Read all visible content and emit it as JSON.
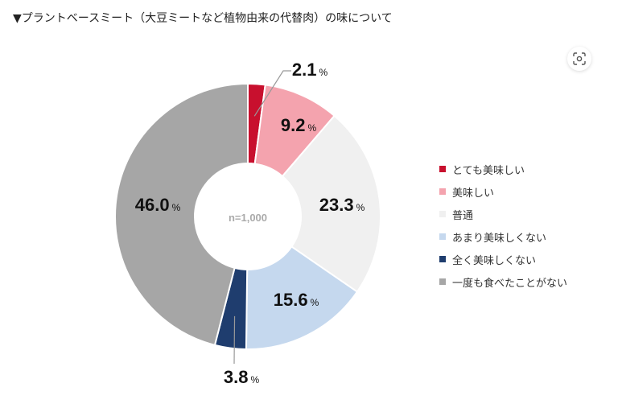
{
  "title": "▼プラントベースミート（大豆ミートなど植物由来の代替肉）の味について",
  "lens_icon": "image-search-icon",
  "chart_data": {
    "type": "pie",
    "donut": true,
    "center_label": "n=1,000",
    "unit": "%",
    "categories": [
      "とても美味しい",
      "美味しい",
      "普通",
      "あまり美味しくない",
      "全く美味しくない",
      "一度も食べたことがない"
    ],
    "values": [
      2.1,
      9.2,
      23.3,
      15.6,
      3.8,
      46.0
    ],
    "labels": [
      "2.1",
      "9.2",
      "23.3",
      "15.6",
      "3.8",
      "46.0"
    ],
    "colors": [
      "#c8102e",
      "#f4a3ae",
      "#f0f0f0",
      "#c5d8ee",
      "#1f3d6e",
      "#a6a6a6"
    ],
    "legend_position": "right"
  }
}
